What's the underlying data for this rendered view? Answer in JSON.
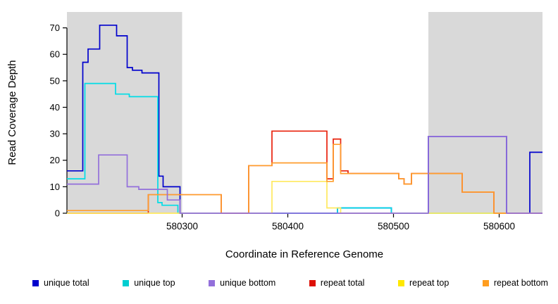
{
  "chart_data": {
    "type": "line",
    "subtype": "step-post",
    "title": "",
    "xlabel": "Coordinate in Reference Genome",
    "ylabel": "Read Coverage Depth",
    "xlim": [
      580191,
      580641
    ],
    "ylim": [
      0,
      76
    ],
    "xticks": [
      580300,
      580400,
      580500,
      580600
    ],
    "yticks": [
      0,
      10,
      20,
      30,
      40,
      50,
      60,
      70
    ],
    "grid": false,
    "legend_position": "bottom",
    "shaded_regions": [
      {
        "name": "left-gray-region",
        "from": 580191,
        "to": 580300,
        "color": "#d9d9d9"
      },
      {
        "name": "right-gray-region",
        "from": 580533,
        "to": 580641,
        "color": "#d9d9d9"
      }
    ],
    "series": [
      {
        "name": "unique total",
        "color": "#0000cd",
        "points": [
          [
            580191,
            16
          ],
          [
            580206,
            57
          ],
          [
            580211,
            62
          ],
          [
            580222,
            71
          ],
          [
            580238,
            67
          ],
          [
            580248,
            55
          ],
          [
            580253,
            54
          ],
          [
            580262,
            53
          ],
          [
            580278,
            14
          ],
          [
            580282,
            10
          ],
          [
            580298,
            0
          ],
          [
            580447,
            2
          ],
          [
            580498,
            0
          ],
          [
            580533,
            29
          ],
          [
            580607,
            0
          ],
          [
            580629,
            23
          ],
          [
            580641,
            23
          ]
        ]
      },
      {
        "name": "unique top",
        "color": "#00dde6",
        "points": [
          [
            580191,
            13
          ],
          [
            580208,
            49
          ],
          [
            580237,
            45
          ],
          [
            580250,
            44
          ],
          [
            580277,
            4
          ],
          [
            580281,
            3
          ],
          [
            580296,
            0
          ],
          [
            580447,
            2
          ],
          [
            580498,
            0
          ],
          [
            580641,
            0
          ]
        ]
      },
      {
        "name": "repeat total",
        "color": "#e8220c",
        "points": [
          [
            580191,
            0
          ],
          [
            580268,
            7
          ],
          [
            580337,
            0
          ],
          [
            580363,
            18
          ],
          [
            580385,
            31
          ],
          [
            580437,
            13
          ],
          [
            580443,
            28
          ],
          [
            580450,
            16
          ],
          [
            580457,
            15
          ],
          [
            580505,
            13
          ],
          [
            580510,
            11
          ],
          [
            580517,
            15
          ],
          [
            580565,
            8
          ],
          [
            580595,
            0
          ],
          [
            580641,
            0
          ]
        ]
      },
      {
        "name": "repeat top",
        "color": "#ffe95e",
        "points": [
          [
            580191,
            0
          ],
          [
            580385,
            12
          ],
          [
            580437,
            2
          ],
          [
            580450,
            0
          ],
          [
            580641,
            0
          ]
        ]
      },
      {
        "name": "repeat bottom",
        "color": "#ff9d2e",
        "points": [
          [
            580191,
            1
          ],
          [
            580268,
            7
          ],
          [
            580337,
            0
          ],
          [
            580363,
            18
          ],
          [
            580385,
            19
          ],
          [
            580437,
            12
          ],
          [
            580443,
            26
          ],
          [
            580450,
            15
          ],
          [
            580505,
            13
          ],
          [
            580510,
            11
          ],
          [
            580517,
            15
          ],
          [
            580565,
            8
          ],
          [
            580595,
            0
          ],
          [
            580641,
            0
          ]
        ]
      },
      {
        "name": "unique bottom",
        "color": "#9370db",
        "points": [
          [
            580191,
            11
          ],
          [
            580221,
            22
          ],
          [
            580248,
            10
          ],
          [
            580259,
            9
          ],
          [
            580286,
            5
          ],
          [
            580298,
            0
          ],
          [
            580533,
            29
          ],
          [
            580607,
            0
          ],
          [
            580641,
            0
          ]
        ]
      }
    ]
  },
  "legend": {
    "items": [
      {
        "label": "unique total",
        "color": "#0000cd"
      },
      {
        "label": "unique top",
        "color": "#00ced1"
      },
      {
        "label": "unique bottom",
        "color": "#9370db"
      },
      {
        "label": "repeat total",
        "color": "#dd1005"
      },
      {
        "label": "repeat top",
        "color": "#ffe800"
      },
      {
        "label": "repeat bottom",
        "color": "#ff9d1e"
      }
    ]
  }
}
